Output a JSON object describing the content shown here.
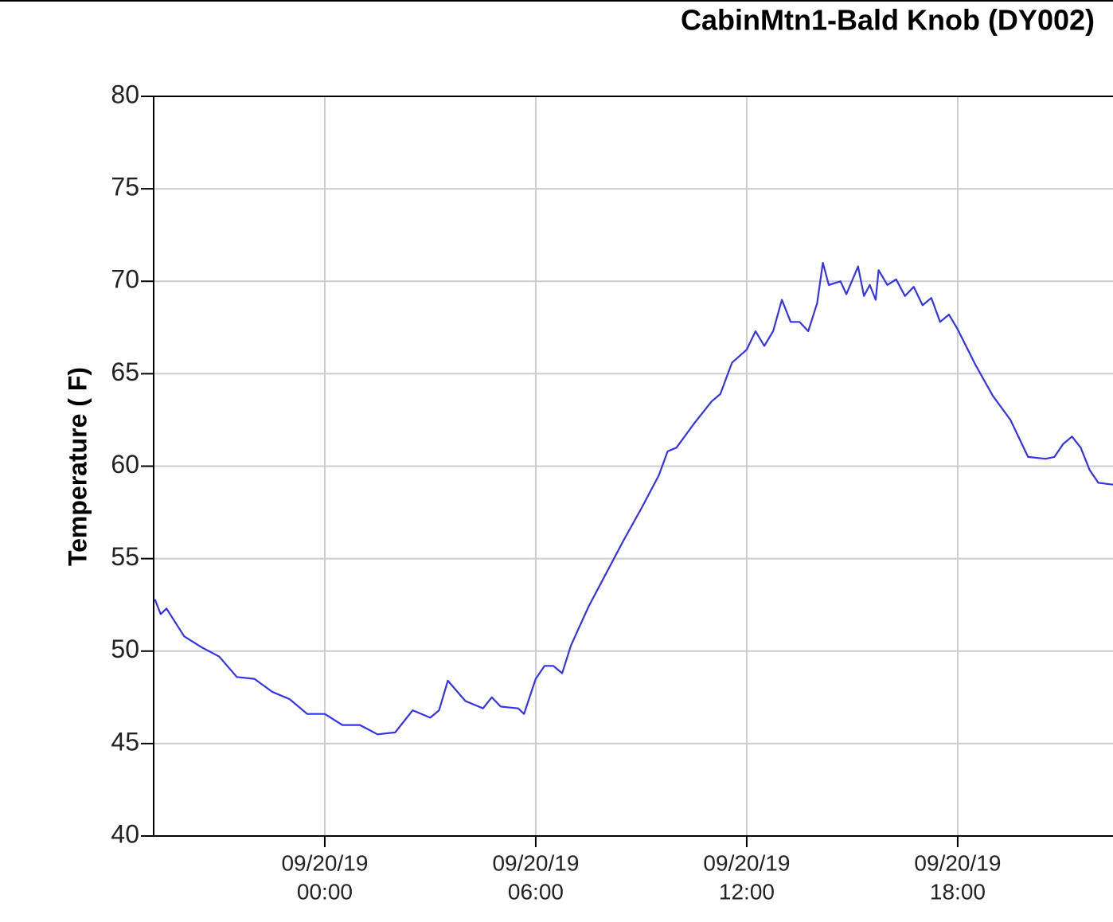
{
  "chart_data": {
    "type": "line",
    "title": "CabinMtn1-Bald Knob (DY002)",
    "y_label": "Temperature ( F)",
    "xlim": [
      "09/19/19 19:08",
      "09/20/19 22:25"
    ],
    "xticks": [
      {
        "value": "09/20/19 00:00",
        "label": [
          "09/20/19",
          "00:00"
        ]
      },
      {
        "value": "09/20/19 06:00",
        "label": [
          "09/20/19",
          "06:00"
        ]
      },
      {
        "value": "09/20/19 12:00",
        "label": [
          "09/20/19",
          "12:00"
        ]
      },
      {
        "value": "09/20/19 18:00",
        "label": [
          "09/20/19",
          "18:00"
        ]
      }
    ],
    "ylim": [
      40,
      80
    ],
    "yticks": [
      40,
      45,
      50,
      55,
      60,
      65,
      70,
      75,
      80
    ],
    "grid": true,
    "x": [
      "09/19/19 19:10",
      "09/19/19 19:20",
      "09/19/19 19:30",
      "09/19/19 20:00",
      "09/19/19 20:30",
      "09/19/19 21:00",
      "09/19/19 21:30",
      "09/19/19 22:00",
      "09/19/19 22:30",
      "09/19/19 23:00",
      "09/19/19 23:30",
      "09/20/19 00:00",
      "09/20/19 00:30",
      "09/20/19 01:00",
      "09/20/19 01:30",
      "09/20/19 02:00",
      "09/20/19 02:30",
      "09/20/19 03:00",
      "09/20/19 03:15",
      "09/20/19 03:30",
      "09/20/19 04:00",
      "09/20/19 04:30",
      "09/20/19 04:45",
      "09/20/19 05:00",
      "09/20/19 05:30",
      "09/20/19 05:40",
      "09/20/19 06:00",
      "09/20/19 06:15",
      "09/20/19 06:30",
      "09/20/19 06:45",
      "09/20/19 07:00",
      "09/20/19 07:30",
      "09/20/19 08:00",
      "09/20/19 08:30",
      "09/20/19 09:00",
      "09/20/19 09:30",
      "09/20/19 09:45",
      "09/20/19 10:00",
      "09/20/19 10:30",
      "09/20/19 11:00",
      "09/20/19 11:15",
      "09/20/19 11:35",
      "09/20/19 12:00",
      "09/20/19 12:15",
      "09/20/19 12:30",
      "09/20/19 12:45",
      "09/20/19 13:00",
      "09/20/19 13:15",
      "09/20/19 13:30",
      "09/20/19 13:45",
      "09/20/19 14:00",
      "09/20/19 14:10",
      "09/20/19 14:20",
      "09/20/19 14:40",
      "09/20/19 14:50",
      "09/20/19 15:10",
      "09/20/19 15:20",
      "09/20/19 15:30",
      "09/20/19 15:40",
      "09/20/19 15:45",
      "09/20/19 16:00",
      "09/20/19 16:15",
      "09/20/19 16:30",
      "09/20/19 16:45",
      "09/20/19 17:00",
      "09/20/19 17:15",
      "09/20/19 17:30",
      "09/20/19 17:45",
      "09/20/19 18:00",
      "09/20/19 18:30",
      "09/20/19 19:00",
      "09/20/19 19:30",
      "09/20/19 20:00",
      "09/20/19 20:30",
      "09/20/19 20:45",
      "09/20/19 21:00",
      "09/20/19 21:15",
      "09/20/19 21:30",
      "09/20/19 21:45",
      "09/20/19 22:00",
      "09/20/19 22:25"
    ],
    "series": [
      {
        "color": "#3333ee",
        "values": [
          52.8,
          52.0,
          52.3,
          50.8,
          50.2,
          49.7,
          48.6,
          48.5,
          47.8,
          47.4,
          46.6,
          46.6,
          46.0,
          46.0,
          45.5,
          45.6,
          46.8,
          46.4,
          46.8,
          48.4,
          47.3,
          46.9,
          47.5,
          47.0,
          46.9,
          46.6,
          48.5,
          49.2,
          49.2,
          48.8,
          50.3,
          52.4,
          54.2,
          56.0,
          57.7,
          59.5,
          60.8,
          61.0,
          62.3,
          63.5,
          63.9,
          65.6,
          66.3,
          67.3,
          66.5,
          67.3,
          69.0,
          67.8,
          67.8,
          67.3,
          68.8,
          71.0,
          69.8,
          70.0,
          69.3,
          70.8,
          69.2,
          69.8,
          69.0,
          70.6,
          69.8,
          70.1,
          69.2,
          69.7,
          68.7,
          69.1,
          67.8,
          68.2,
          67.4,
          65.5,
          63.8,
          62.5,
          60.5,
          60.4,
          60.5,
          61.2,
          61.6,
          61.0,
          59.8,
          59.1,
          59.0
        ]
      }
    ]
  }
}
